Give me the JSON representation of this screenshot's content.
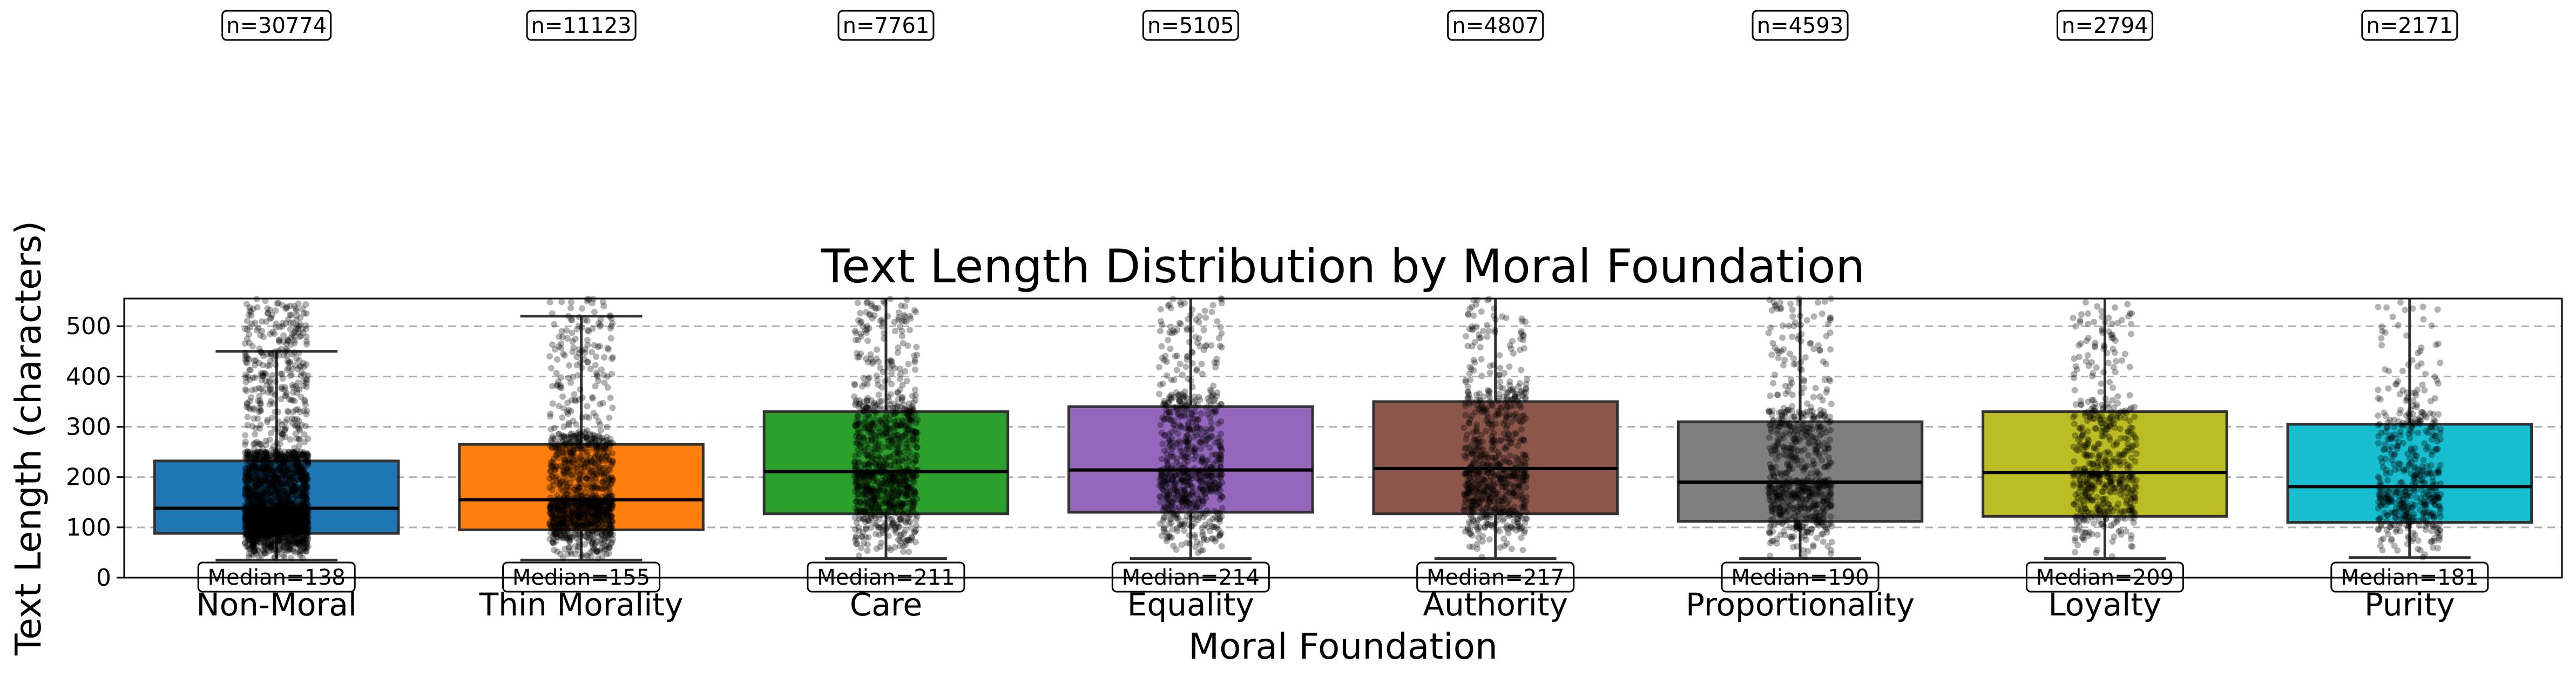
{
  "chart_data": {
    "type": "box",
    "title": "Text Length Distribution by Moral Foundation",
    "xlabel": "Moral Foundation",
    "ylabel": "Text Length (characters)",
    "ylim": [
      0,
      555
    ],
    "yticks": [
      0,
      100,
      200,
      300,
      400,
      500
    ],
    "grid": "y-dashed",
    "categories": [
      "Non-Moral",
      "Thin Morality",
      "Care",
      "Equality",
      "Authority",
      "Proportionality",
      "Loyalty",
      "Purity"
    ],
    "colors": [
      "#1f77b4",
      "#ff7f0e",
      "#2ca02c",
      "#9467bd",
      "#8c564b",
      "#7f7f7f",
      "#bcbd22",
      "#17becf"
    ],
    "counts": [
      30774,
      11123,
      7761,
      5105,
      4807,
      4593,
      2794,
      2171
    ],
    "count_labels": [
      "n=30774",
      "n=11123",
      "n=7761",
      "n=5105",
      "n=4807",
      "n=4593",
      "n=2794",
      "n=2171"
    ],
    "medians": [
      138,
      155,
      211,
      214,
      217,
      190,
      209,
      181
    ],
    "median_labels": [
      "Median=138",
      "Median=155",
      "Median=211",
      "Median=214",
      "Median=217",
      "Median=190",
      "Median=209",
      "Median=181"
    ],
    "q1": [
      88,
      95,
      127,
      130,
      127,
      112,
      122,
      110
    ],
    "q3": [
      232,
      265,
      330,
      340,
      350,
      310,
      330,
      305
    ],
    "whisker_low": [
      35,
      35,
      38,
      38,
      38,
      38,
      38,
      40
    ],
    "whisker_high": [
      450,
      520,
      555,
      555,
      555,
      555,
      555,
      555
    ]
  }
}
